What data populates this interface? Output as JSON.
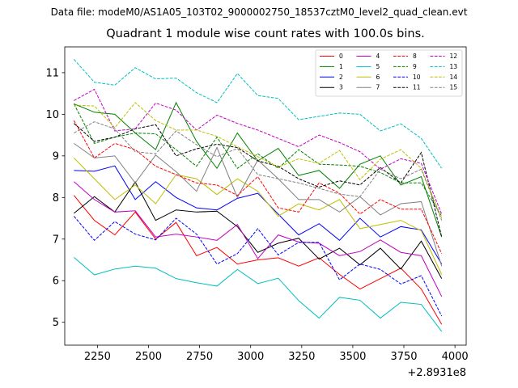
{
  "figure": {
    "suptitle": "Data file: modeM0/AS1A05_103T02_9000002750_18537cztM0_level2_quad_clean.evt",
    "title": "Quadrant 1 module wise count rates with 100.0s bins.",
    "offset_label": "+2.8931e8"
  },
  "chart_data": {
    "type": "line",
    "title": "Quadrant 1 module wise count rates with 100.0s bins.",
    "xlabel": "",
    "ylabel": "",
    "x_offset": 289310000,
    "xlim": [
      2090,
      4055
    ],
    "ylim": [
      4.45,
      11.62
    ],
    "xticks": [
      2250,
      2500,
      2750,
      3000,
      3250,
      3500,
      3750,
      4000
    ],
    "yticks": [
      5,
      6,
      7,
      8,
      9,
      10,
      11
    ],
    "grid": false,
    "legend_position": "top-right",
    "x": [
      2135,
      2235,
      2335,
      2435,
      2535,
      2635,
      2735,
      2835,
      2935,
      3035,
      3135,
      3235,
      3335,
      3435,
      3535,
      3635,
      3735,
      3835,
      3935
    ],
    "series": [
      {
        "name": "0",
        "color": "#ff0000",
        "dash": "solid",
        "values": [
          8.05,
          7.45,
          7.1,
          7.65,
          7.0,
          7.4,
          6.6,
          6.8,
          6.4,
          6.5,
          6.55,
          6.35,
          6.55,
          6.15,
          5.8,
          6.05,
          6.3,
          5.8,
          4.95
        ]
      },
      {
        "name": "1",
        "color": "#008000",
        "dash": "solid",
        "values": [
          10.25,
          10.05,
          10.0,
          9.55,
          9.15,
          10.28,
          9.35,
          8.7,
          9.55,
          8.88,
          9.18,
          8.53,
          8.65,
          8.22,
          8.8,
          9.0,
          8.3,
          8.5,
          7.05
        ]
      },
      {
        "name": "2",
        "color": "#0000ff",
        "dash": "solid",
        "values": [
          8.65,
          8.63,
          8.76,
          7.95,
          8.38,
          8.0,
          7.75,
          7.7,
          7.98,
          8.1,
          7.6,
          7.1,
          7.37,
          6.97,
          7.5,
          7.05,
          7.3,
          7.22,
          6.4
        ]
      },
      {
        "name": "3",
        "color": "#000000",
        "dash": "solid",
        "values": [
          7.62,
          8.02,
          7.65,
          8.37,
          7.45,
          7.7,
          7.65,
          7.67,
          7.3,
          6.68,
          6.9,
          7.02,
          6.52,
          6.78,
          6.38,
          6.78,
          6.28,
          6.95,
          6.05
        ]
      },
      {
        "name": "4",
        "color": "#bf00bf",
        "dash": "solid",
        "values": [
          8.38,
          7.95,
          7.65,
          7.68,
          7.05,
          7.12,
          7.05,
          6.97,
          7.35,
          6.53,
          7.1,
          6.93,
          6.9,
          6.6,
          6.7,
          6.98,
          6.68,
          6.6,
          5.62
        ]
      },
      {
        "name": "5",
        "color": "#00bfbf",
        "dash": "solid",
        "values": [
          6.56,
          6.14,
          6.28,
          6.35,
          6.3,
          6.05,
          5.95,
          5.87,
          6.27,
          5.93,
          6.06,
          5.52,
          5.1,
          5.6,
          5.53,
          5.1,
          5.48,
          5.43,
          4.78
        ]
      },
      {
        "name": "6",
        "color": "#bfbf00",
        "dash": "solid",
        "values": [
          8.95,
          8.45,
          7.95,
          8.3,
          7.85,
          8.55,
          8.45,
          8.07,
          8.45,
          8.15,
          7.55,
          7.85,
          7.7,
          7.95,
          7.25,
          7.35,
          7.45,
          7.2,
          6.15
        ]
      },
      {
        "name": "7",
        "color": "#808080",
        "dash": "solid",
        "values": [
          9.3,
          8.95,
          9.0,
          8.35,
          9.02,
          8.62,
          8.15,
          9.2,
          8.0,
          8.9,
          8.45,
          7.95,
          7.95,
          7.65,
          8.02,
          7.58,
          7.85,
          7.9,
          6.35
        ]
      },
      {
        "name": "8",
        "color": "#ff0000",
        "dash": "dashed",
        "values": [
          9.85,
          8.95,
          9.3,
          9.15,
          8.75,
          8.55,
          8.35,
          8.3,
          8.05,
          8.5,
          7.75,
          7.65,
          8.35,
          8.1,
          7.6,
          7.95,
          7.72,
          7.72,
          6.65
        ]
      },
      {
        "name": "9",
        "color": "#008000",
        "dash": "dashed",
        "values": [
          10.25,
          9.3,
          9.45,
          9.55,
          9.53,
          9.15,
          8.75,
          9.45,
          8.7,
          9.05,
          8.7,
          9.15,
          8.8,
          8.78,
          8.75,
          8.6,
          8.35,
          8.35,
          7.55
        ]
      },
      {
        "name": "10",
        "color": "#0000ff",
        "dash": "dashed",
        "values": [
          7.55,
          6.97,
          7.42,
          7.12,
          6.98,
          7.5,
          7.12,
          6.4,
          6.65,
          7.25,
          6.62,
          6.92,
          6.92,
          6.02,
          6.4,
          6.27,
          5.92,
          6.12,
          5.15
        ]
      },
      {
        "name": "11",
        "color": "#000000",
        "dash": "dashed",
        "values": [
          9.78,
          9.35,
          9.45,
          9.65,
          9.75,
          9.0,
          9.17,
          9.28,
          9.2,
          8.88,
          8.75,
          8.45,
          8.25,
          8.4,
          8.3,
          8.72,
          8.35,
          9.08,
          7.05
        ]
      },
      {
        "name": "12",
        "color": "#bf00bf",
        "dash": "dashed",
        "values": [
          10.33,
          10.6,
          9.6,
          9.65,
          10.27,
          10.1,
          9.62,
          9.98,
          9.78,
          9.62,
          9.42,
          9.22,
          9.5,
          9.32,
          9.1,
          8.68,
          8.93,
          8.82,
          7.6
        ]
      },
      {
        "name": "13",
        "color": "#00bfbf",
        "dash": "dashed",
        "values": [
          11.32,
          10.77,
          10.7,
          11.12,
          10.85,
          10.87,
          10.52,
          10.28,
          10.98,
          10.45,
          10.38,
          9.87,
          9.95,
          10.03,
          10.0,
          9.6,
          9.77,
          9.42,
          8.7
        ]
      },
      {
        "name": "14",
        "color": "#bfbf00",
        "dash": "dashed",
        "values": [
          10.22,
          10.2,
          9.68,
          10.28,
          9.85,
          9.62,
          9.62,
          9.47,
          9.22,
          8.98,
          8.73,
          8.93,
          8.82,
          9.13,
          8.43,
          8.92,
          9.15,
          8.7,
          7.5
        ]
      },
      {
        "name": "15",
        "color": "#808080",
        "dash": "dashed",
        "values": [
          9.55,
          9.82,
          9.65,
          9.1,
          9.05,
          9.6,
          9.27,
          8.98,
          9.18,
          8.55,
          8.45,
          8.35,
          8.22,
          8.08,
          8.02,
          8.68,
          8.45,
          8.68,
          7.45
        ]
      }
    ]
  }
}
